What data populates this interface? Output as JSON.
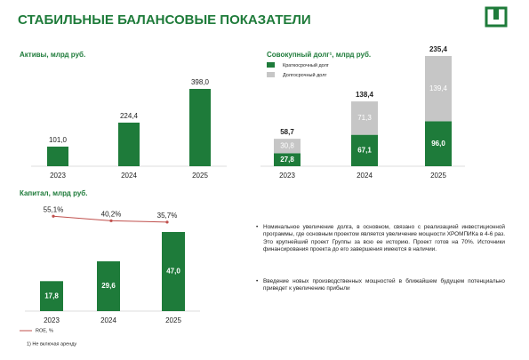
{
  "title": "СТАБИЛЬНЫЕ БАЛАНСОВЫЕ ПОКАЗАТЕЛИ",
  "bullets": [
    "Номинальное увеличение долга, в основном, связано с реализацией инвестиционной программы, где основным проектом является увеличение мощности ХРОМПИКа в 4-6 раз. Это крупнейший проект Группы за всю ее историю. Проект готов на 70%. Источники финансирования проекта до его завершения имеются в наличии.",
    "Введение новых производственных мощностей в ближайшем будущем потенциально приведет к увеличению прибыли"
  ],
  "footnote": "1) Не включая аренду",
  "chart_data": [
    {
      "type": "bar",
      "title": "Активы, млрд руб.",
      "categories": [
        "2023",
        "2024",
        "2025"
      ],
      "values": [
        101.0,
        224.4,
        398.0
      ],
      "value_labels": [
        "101,0",
        "224,4",
        "398,0"
      ],
      "color": "#1e7b3a"
    },
    {
      "type": "stacked_bar",
      "title": "Совокупный долг¹, млрд руб.",
      "categories": [
        "2023",
        "2024",
        "2025"
      ],
      "series": [
        {
          "name": "Краткосрочный долг",
          "color": "#1e7b3a",
          "values": [
            27.8,
            67.1,
            96.0
          ],
          "value_labels": [
            "27,8",
            "67,1",
            "96,0"
          ]
        },
        {
          "name": "Долгосрочный долг",
          "color": "#c6c6c6",
          "values": [
            30.8,
            71.3,
            139.4
          ],
          "value_labels": [
            "30,8",
            "71,3",
            "139,4"
          ]
        }
      ],
      "totals": [
        58.7,
        138.4,
        235.4
      ],
      "total_labels": [
        "58,7",
        "138,4",
        "235,4"
      ]
    },
    {
      "type": "combo",
      "title": "Капитал, млрд руб.",
      "categories": [
        "2023",
        "2024",
        "2025"
      ],
      "values": [
        17.8,
        29.6,
        47.0
      ],
      "value_labels": [
        "17,8",
        "29,6",
        "47,0"
      ],
      "color": "#1e7b3a",
      "line": {
        "name": "ROE, %",
        "color": "#c0504d",
        "values": [
          55.1,
          40.2,
          35.7
        ],
        "value_labels": [
          "55,1%",
          "40,2%",
          "35,7%"
        ]
      }
    }
  ]
}
